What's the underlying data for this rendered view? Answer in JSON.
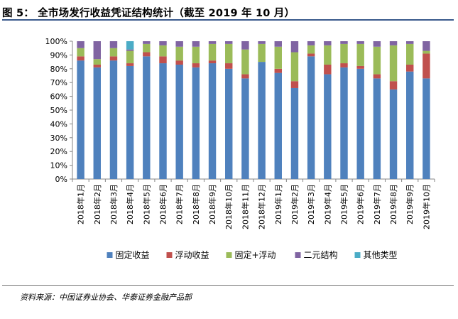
{
  "header": {
    "title": "图 5： 全市场发行收益凭证结构统计（截至 2019 年 10 月）"
  },
  "footer": {
    "source": "资料来源：中国证券业协会、华泰证券金融产品部"
  },
  "chart_data": {
    "type": "bar",
    "stacked": true,
    "percent": true,
    "title": "",
    "xlabel": "",
    "ylabel": "",
    "ylim": [
      0,
      100
    ],
    "yticks": [
      "0%",
      "10%",
      "20%",
      "30%",
      "40%",
      "50%",
      "60%",
      "70%",
      "80%",
      "90%",
      "100%"
    ],
    "grid": false,
    "legend_position": "bottom",
    "categories": [
      "2018年1月",
      "2018年2月",
      "2018年3月",
      "2018年4月",
      "2018年5月",
      "2018年6月",
      "2018年7月",
      "2018年8月",
      "2018年9月",
      "2018年10月",
      "2018年11月",
      "2018年12月",
      "2019年1月",
      "2019年2月",
      "2019年3月",
      "2019年4月",
      "2019年5月",
      "2019年6月",
      "2019年7月",
      "2019年8月",
      "2019年9月",
      "2019年10月"
    ],
    "series": [
      {
        "name": "固定收益",
        "color": "#4f81bd",
        "values": [
          86,
          81,
          86,
          82,
          89,
          84,
          83,
          81,
          84,
          80,
          73,
          85,
          77,
          66,
          89,
          76,
          81,
          80,
          73,
          65,
          78,
          73
        ]
      },
      {
        "name": "浮动收益",
        "color": "#c0504d",
        "values": [
          3,
          2,
          3,
          2,
          3,
          5,
          3,
          3,
          2,
          4,
          3,
          0,
          3,
          5,
          2,
          7,
          3,
          2,
          3,
          6,
          5,
          18
        ]
      },
      {
        "name": "固定+浮动",
        "color": "#9bbb59",
        "values": [
          6,
          4,
          6,
          9,
          6,
          8,
          10,
          12,
          12,
          14,
          18,
          13,
          16,
          21,
          6,
          14,
          14,
          16,
          20,
          26,
          15,
          2
        ]
      },
      {
        "name": "二元结构",
        "color": "#8064a2",
        "values": [
          5,
          13,
          5,
          1,
          2,
          3,
          4,
          4,
          2,
          2,
          6,
          2,
          4,
          8,
          3,
          3,
          2,
          2,
          4,
          3,
          2,
          7
        ]
      },
      {
        "name": "其他类型",
        "color": "#4bacc6",
        "values": [
          0,
          0,
          0,
          6,
          0,
          0,
          0,
          0,
          0,
          0,
          0,
          0,
          0,
          0,
          0,
          0,
          0,
          0,
          0,
          0,
          0,
          0
        ]
      }
    ]
  }
}
